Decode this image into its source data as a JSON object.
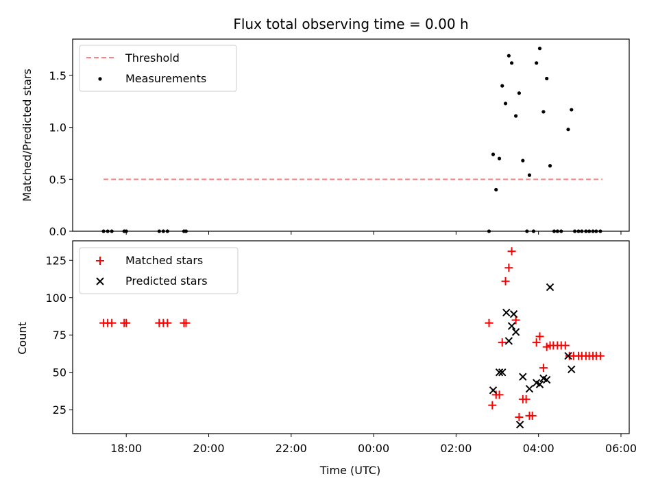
{
  "chart_data": [
    {
      "panel": "top",
      "type": "scatter",
      "title": "Flux total observing time = 0.00 h",
      "xlabel": "",
      "ylabel": "Matched/Predicted stars",
      "xlim": [
        16.7,
        30.2
      ],
      "ylim": [
        0,
        1.85
      ],
      "yticks": [
        0.0,
        0.5,
        1.0,
        1.5
      ],
      "ytick_labels": [
        "0.0",
        "0.5",
        "1.0",
        "1.5"
      ],
      "legend": "top-left",
      "legend_entries": [
        "Threshold",
        "Measurements"
      ],
      "threshold": {
        "name": "Threshold",
        "x": [
          17.45,
          29.55
        ],
        "y": 0.5,
        "color": "#ff8080"
      },
      "series": [
        {
          "name": "Measurements",
          "marker": "dot",
          "color": "#000000",
          "points": [
            [
              17.45,
              0
            ],
            [
              17.55,
              0
            ],
            [
              17.65,
              0
            ],
            [
              17.95,
              0
            ],
            [
              18.0,
              0
            ],
            [
              18.8,
              0
            ],
            [
              18.9,
              0
            ],
            [
              19.0,
              0
            ],
            [
              19.4,
              0
            ],
            [
              19.45,
              0
            ],
            [
              26.8,
              0
            ],
            [
              26.9,
              0.74
            ],
            [
              26.97,
              0.4
            ],
            [
              27.05,
              0.7
            ],
            [
              27.12,
              1.4
            ],
            [
              27.2,
              1.23
            ],
            [
              27.28,
              1.69
            ],
            [
              27.35,
              1.62
            ],
            [
              27.45,
              1.11
            ],
            [
              27.53,
              1.33
            ],
            [
              27.62,
              0.68
            ],
            [
              27.72,
              0
            ],
            [
              27.78,
              0.54
            ],
            [
              27.88,
              0
            ],
            [
              27.95,
              1.62
            ],
            [
              28.03,
              1.76
            ],
            [
              28.12,
              1.15
            ],
            [
              28.2,
              1.47
            ],
            [
              28.28,
              0.63
            ],
            [
              28.38,
              0
            ],
            [
              28.46,
              0
            ],
            [
              28.55,
              0
            ],
            [
              28.72,
              0.98
            ],
            [
              28.8,
              1.17
            ],
            [
              28.88,
              0
            ],
            [
              28.97,
              0
            ],
            [
              29.05,
              0
            ],
            [
              29.15,
              0
            ],
            [
              29.23,
              0
            ],
            [
              29.32,
              0
            ],
            [
              29.4,
              0
            ],
            [
              29.5,
              0
            ]
          ]
        }
      ]
    },
    {
      "panel": "bottom",
      "type": "scatter",
      "title": "",
      "xlabel": "Time (UTC)",
      "ylabel": "Count",
      "xlim": [
        16.7,
        30.2
      ],
      "ylim": [
        9,
        138
      ],
      "xticks": [
        18,
        20,
        22,
        24,
        26,
        28,
        30
      ],
      "xtick_labels": [
        "18:00",
        "20:00",
        "22:00",
        "00:00",
        "02:00",
        "04:00",
        "06:00"
      ],
      "yticks": [
        25,
        50,
        75,
        100,
        125
      ],
      "ytick_labels": [
        "25",
        "50",
        "75",
        "100",
        "125"
      ],
      "legend": "top-left",
      "legend_entries": [
        "Matched stars",
        "Predicted stars"
      ],
      "series": [
        {
          "name": "Matched stars",
          "marker": "plus",
          "color": "#ff0000",
          "points": [
            [
              17.45,
              83
            ],
            [
              17.55,
              83
            ],
            [
              17.65,
              83
            ],
            [
              17.95,
              83
            ],
            [
              18.0,
              83
            ],
            [
              18.8,
              83
            ],
            [
              18.9,
              83
            ],
            [
              19.0,
              83
            ],
            [
              19.4,
              83
            ],
            [
              19.45,
              83
            ],
            [
              26.8,
              83
            ],
            [
              26.88,
              28
            ],
            [
              26.97,
              35
            ],
            [
              27.05,
              35
            ],
            [
              27.12,
              70
            ],
            [
              27.2,
              111
            ],
            [
              27.28,
              120
            ],
            [
              27.35,
              131
            ],
            [
              27.45,
              85
            ],
            [
              27.53,
              20
            ],
            [
              27.62,
              32
            ],
            [
              27.7,
              32
            ],
            [
              27.78,
              21
            ],
            [
              27.85,
              21
            ],
            [
              27.95,
              70
            ],
            [
              28.03,
              74
            ],
            [
              28.12,
              53
            ],
            [
              28.2,
              67
            ],
            [
              28.28,
              68
            ],
            [
              28.36,
              68
            ],
            [
              28.46,
              68
            ],
            [
              28.55,
              68
            ],
            [
              28.65,
              68
            ],
            [
              28.75,
              61
            ],
            [
              28.85,
              61
            ],
            [
              28.97,
              61
            ],
            [
              29.05,
              61
            ],
            [
              29.15,
              61
            ],
            [
              29.23,
              61
            ],
            [
              29.32,
              61
            ],
            [
              29.4,
              61
            ],
            [
              29.5,
              61
            ]
          ]
        },
        {
          "name": "Predicted stars",
          "marker": "x",
          "color": "#000000",
          "points": [
            [
              26.9,
              38
            ],
            [
              27.05,
              50
            ],
            [
              27.12,
              50
            ],
            [
              27.22,
              90
            ],
            [
              27.28,
              71
            ],
            [
              27.35,
              81
            ],
            [
              27.4,
              89
            ],
            [
              27.45,
              77
            ],
            [
              27.55,
              15
            ],
            [
              27.62,
              47
            ],
            [
              27.78,
              39
            ],
            [
              27.95,
              43
            ],
            [
              28.03,
              42
            ],
            [
              28.12,
              46
            ],
            [
              28.2,
              45
            ],
            [
              28.28,
              107
            ],
            [
              28.72,
              61
            ],
            [
              28.8,
              52
            ]
          ]
        }
      ]
    }
  ]
}
